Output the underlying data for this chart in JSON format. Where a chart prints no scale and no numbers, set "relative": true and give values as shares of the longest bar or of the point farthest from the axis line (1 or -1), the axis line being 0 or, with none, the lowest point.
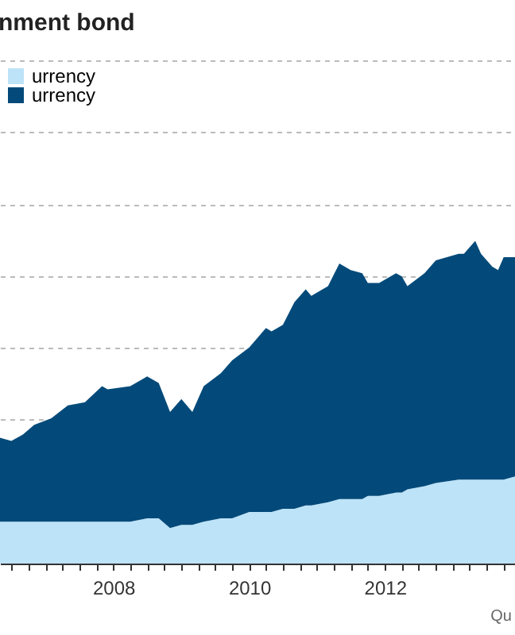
{
  "chart_data": {
    "type": "area",
    "title": "nment bond",
    "stacked": true,
    "relative": true,
    "grid": "y",
    "legend": "top left",
    "annotations": [
      "Qu"
    ],
    "x": [
      "2006-05",
      "2006-07",
      "2006-09",
      "2006-11",
      "2007-02",
      "2007-05",
      "2007-08",
      "2007-11",
      "2007-12",
      "2008-04",
      "2008-07",
      "2008-09",
      "2008-11",
      "2009-01",
      "2009-03",
      "2009-05",
      "2009-08",
      "2009-10",
      "2010-01",
      "2010-04",
      "2010-05",
      "2010-07",
      "2010-09",
      "2010-11",
      "2010-12",
      "2011-03",
      "2011-05",
      "2011-07",
      "2011-09",
      "2011-10",
      "2011-12",
      "2012-03",
      "2012-04",
      "2012-05",
      "2012-08",
      "2012-10",
      "2013-02",
      "2013-03",
      "2013-05",
      "2013-06",
      "2013-08",
      "2013-09",
      "2013-10",
      "2013-12"
    ],
    "xlim": [
      "2006-05",
      "2013-12"
    ],
    "xticks": [
      {
        "value": "2006-07",
        "label": null
      },
      {
        "value": "2006-10",
        "label": null
      },
      {
        "value": "2007-01",
        "label": null
      },
      {
        "value": "2007-04",
        "label": null
      },
      {
        "value": "2007-07",
        "label": null
      },
      {
        "value": "2007-10",
        "label": null
      },
      {
        "value": "2008",
        "label": "2008"
      },
      {
        "value": "2008-04",
        "label": null
      },
      {
        "value": "2008-07",
        "label": null
      },
      {
        "value": "2008-10",
        "label": null
      },
      {
        "value": "2009-01",
        "label": null
      },
      {
        "value": "2009-04",
        "label": null
      },
      {
        "value": "2009-07",
        "label": null
      },
      {
        "value": "2009-10",
        "label": null
      },
      {
        "value": "2010",
        "label": "2010"
      },
      {
        "value": "2010-04",
        "label": null
      },
      {
        "value": "2010-07",
        "label": null
      },
      {
        "value": "2010-10",
        "label": null
      },
      {
        "value": "2011-01",
        "label": null
      },
      {
        "value": "2011-04",
        "label": null
      },
      {
        "value": "2011-07",
        "label": null
      },
      {
        "value": "2011-10",
        "label": null
      },
      {
        "value": "2012",
        "label": "2012"
      },
      {
        "value": "2012-04",
        "label": null
      },
      {
        "value": "2012-07",
        "label": null
      },
      {
        "value": "2012-10",
        "label": null
      },
      {
        "value": "2013-01",
        "label": null
      },
      {
        "value": "2013-04",
        "label": null
      },
      {
        "value": "2013-07",
        "label": null
      },
      {
        "value": "2013-10",
        "label": null
      }
    ],
    "series": [
      {
        "name": "urrency",
        "color": "#bde3f8",
        "values": [
          0.13,
          0.13,
          0.13,
          0.13,
          0.13,
          0.13,
          0.13,
          0.13,
          0.13,
          0.13,
          0.14,
          0.14,
          0.11,
          0.12,
          0.12,
          0.13,
          0.14,
          0.14,
          0.16,
          0.16,
          0.16,
          0.17,
          0.17,
          0.18,
          0.18,
          0.19,
          0.2,
          0.2,
          0.2,
          0.21,
          0.21,
          0.22,
          0.22,
          0.23,
          0.24,
          0.25,
          0.26,
          0.26,
          0.26,
          0.26,
          0.26,
          0.26,
          0.26,
          0.27
        ]
      },
      {
        "name": "urrency",
        "color": "#034a7a",
        "values": [
          0.26,
          0.25,
          0.27,
          0.3,
          0.32,
          0.36,
          0.37,
          0.42,
          0.41,
          0.42,
          0.44,
          0.42,
          0.36,
          0.39,
          0.35,
          0.42,
          0.45,
          0.49,
          0.51,
          0.57,
          0.56,
          0.57,
          0.64,
          0.67,
          0.65,
          0.67,
          0.73,
          0.71,
          0.7,
          0.66,
          0.66,
          0.68,
          0.67,
          0.63,
          0.66,
          0.69,
          0.7,
          0.7,
          0.74,
          0.7,
          0.66,
          0.65,
          0.69,
          0.68
        ]
      }
    ]
  }
}
